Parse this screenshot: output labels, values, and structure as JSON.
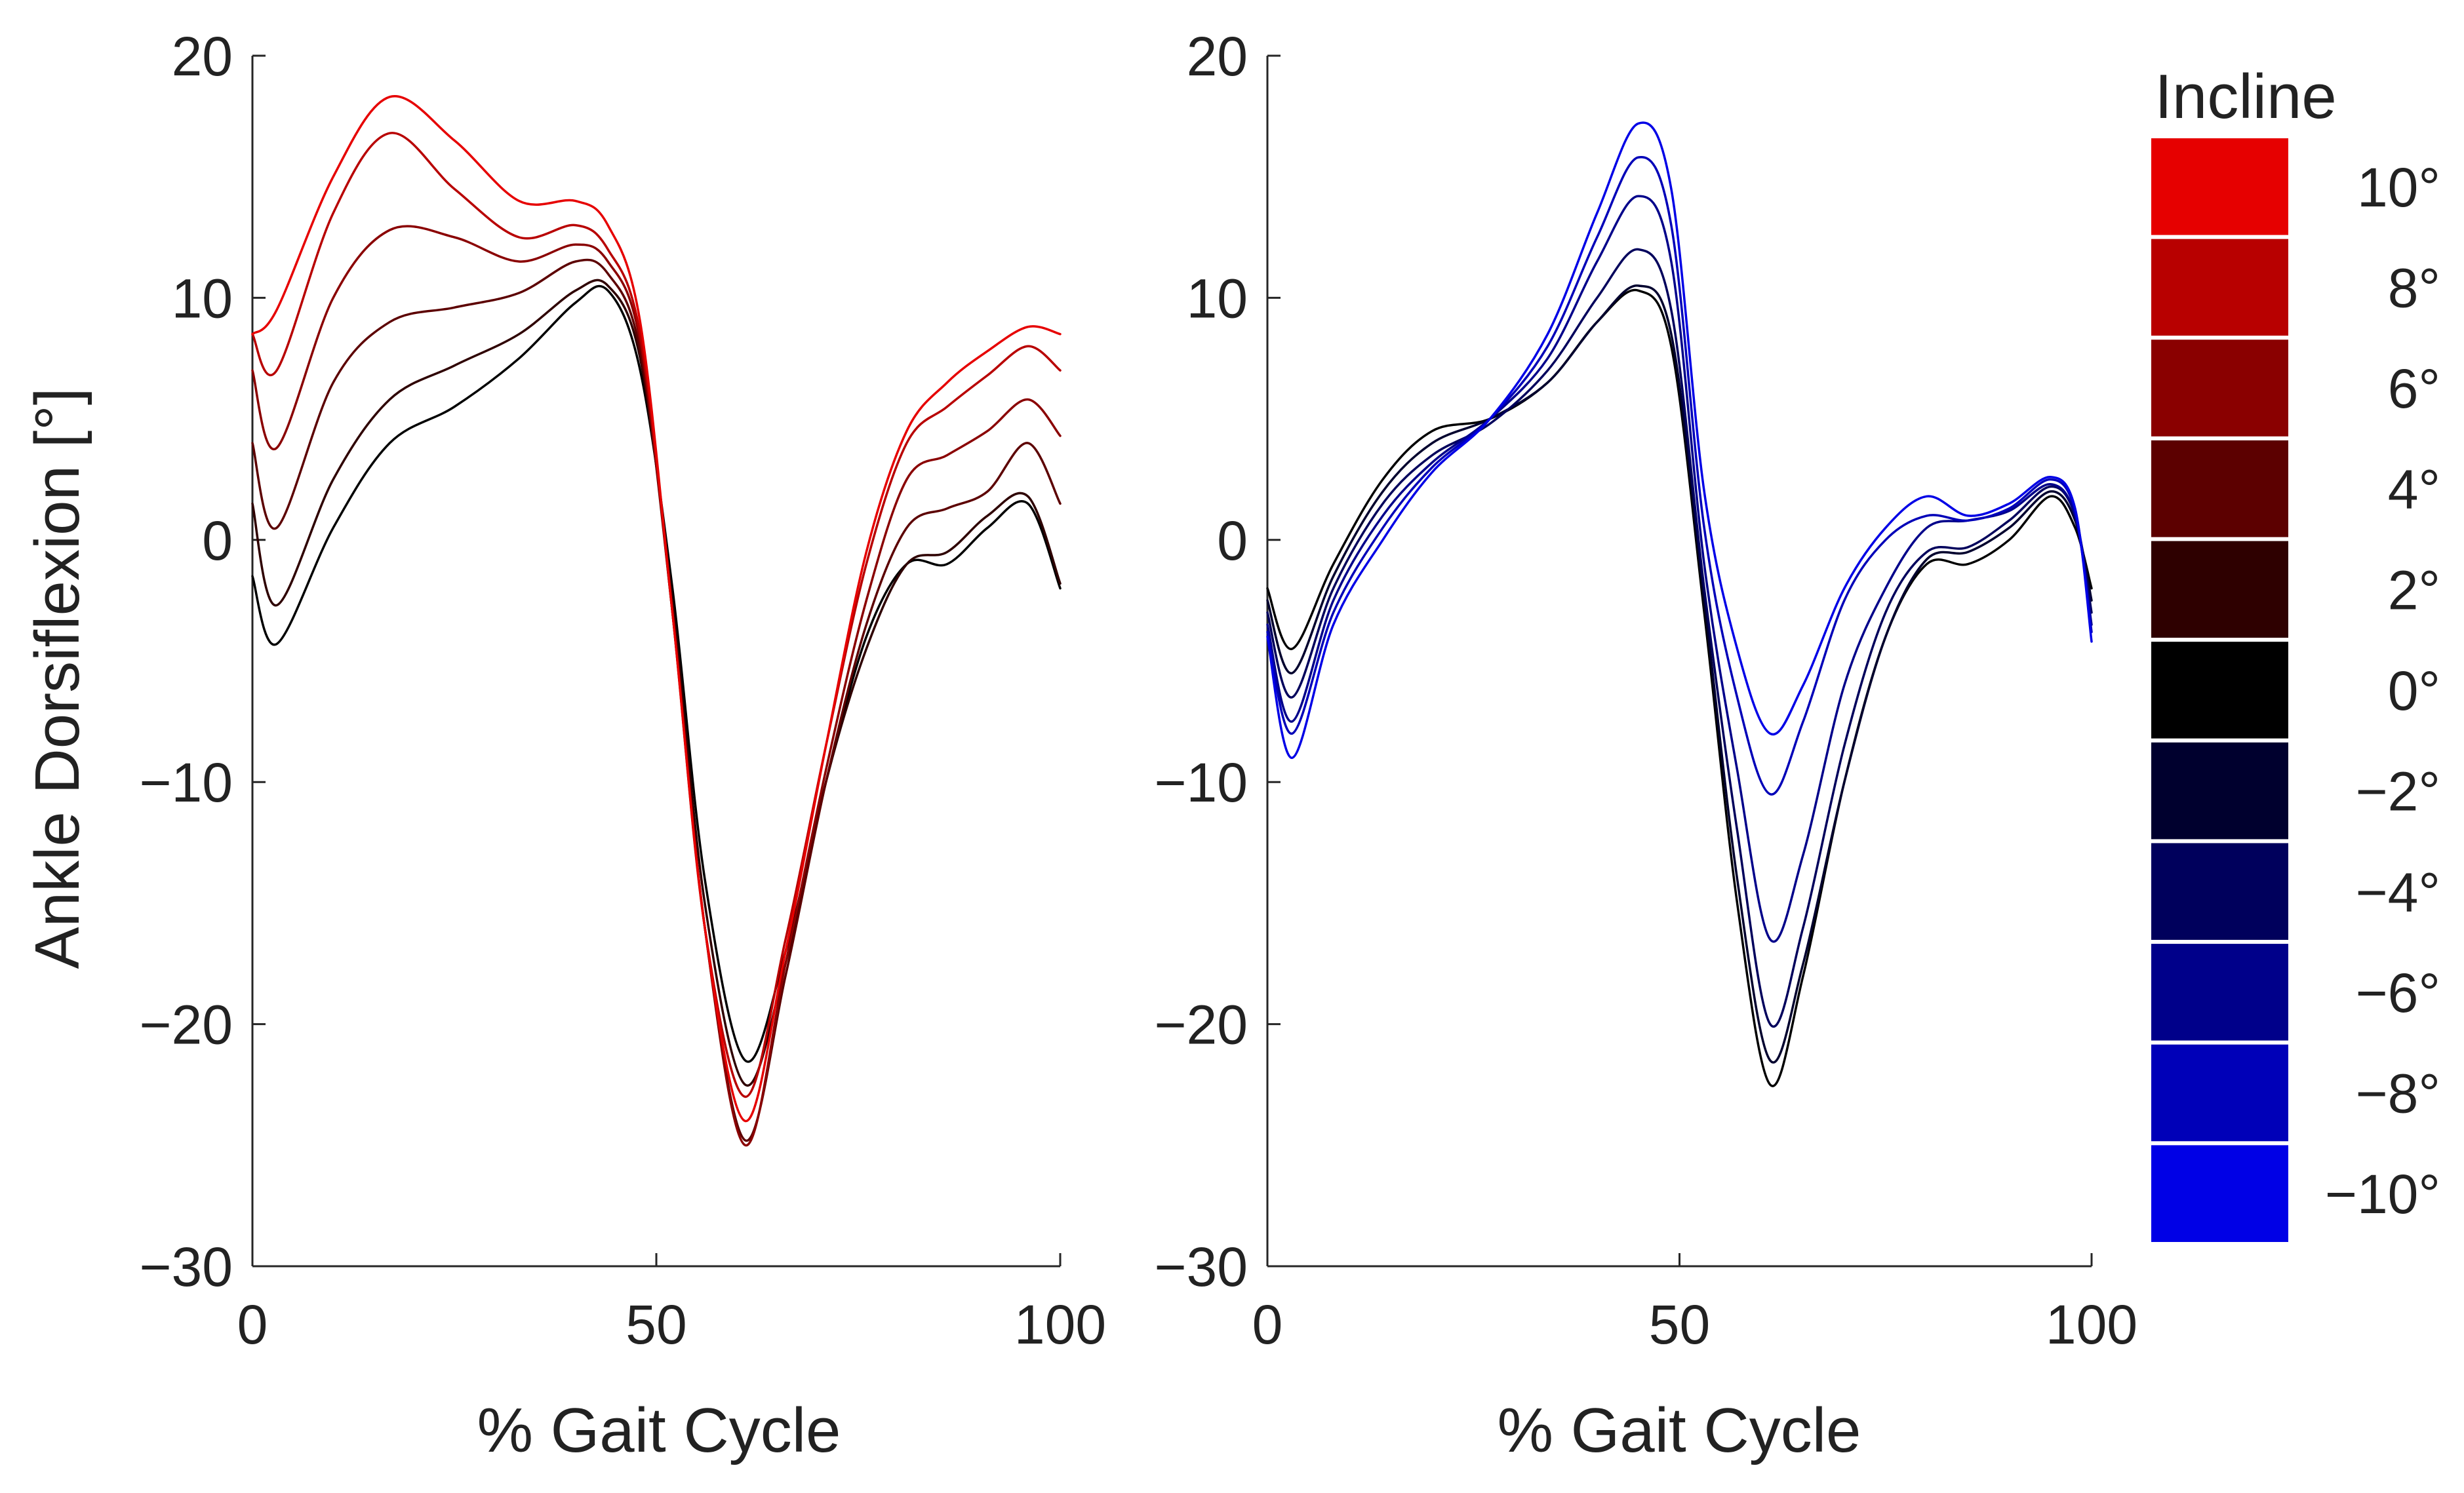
{
  "colorbar": {
    "title": "Incline",
    "ticks": [
      "10°",
      "8°",
      "6°",
      "4°",
      "2°",
      "0°",
      "−2°",
      "−4°",
      "−6°",
      "−8°",
      "−10°"
    ],
    "colors": [
      "#e60000",
      "#b80000",
      "#8a0000",
      "#5c0000",
      "#2e0000",
      "#000000",
      "#00002e",
      "#00005c",
      "#00008a",
      "#0000b8",
      "#0000e6"
    ]
  },
  "chart_data": [
    {
      "type": "line",
      "title": "",
      "xlabel": "% Gait Cycle",
      "ylabel": "Ankle Dorsiflexion [°]",
      "xlim": [
        0,
        100
      ],
      "ylim": [
        -30,
        20
      ],
      "xticks": [
        "0",
        "50",
        "100"
      ],
      "yticks": [
        "−30",
        "−20",
        "−10",
        "0",
        "10",
        "20"
      ],
      "x": [
        0,
        3,
        10,
        17,
        25,
        33,
        40,
        44,
        48,
        52,
        56,
        61,
        66,
        71,
        76,
        81,
        86,
        91,
        96,
        100
      ],
      "series": [
        {
          "name": "0°",
          "color": "#000000",
          "values": [
            -1.5,
            -4.3,
            0.5,
            4.0,
            5.5,
            7.5,
            9.8,
            10.3,
            7.0,
            -2.0,
            -14.0,
            -21.5,
            -17.0,
            -10.0,
            -4.0,
            -1.0,
            -1.0,
            0.5,
            1.5,
            -2.0
          ]
        },
        {
          "name": "2°",
          "color": "#2e0000",
          "values": [
            1.5,
            -2.7,
            2.5,
            5.8,
            7.2,
            8.5,
            10.3,
            10.5,
            7.5,
            -2.5,
            -15.0,
            -22.5,
            -17.5,
            -10.0,
            -4.5,
            -1.0,
            -0.5,
            1.0,
            1.8,
            -1.8
          ]
        },
        {
          "name": "4°",
          "color": "#5c0000",
          "values": [
            4.0,
            0.5,
            6.5,
            9.0,
            9.6,
            10.2,
            11.5,
            11.0,
            7.8,
            -3.0,
            -16.0,
            -24.8,
            -18.0,
            -10.0,
            -3.5,
            0.5,
            1.3,
            2.0,
            4.0,
            1.5
          ]
        },
        {
          "name": "6°",
          "color": "#8a0000",
          "values": [
            7.0,
            3.8,
            10.0,
            12.8,
            12.5,
            11.5,
            12.2,
            11.5,
            8.2,
            -3.0,
            -16.0,
            -25.0,
            -17.5,
            -9.5,
            -2.5,
            2.5,
            3.5,
            4.5,
            5.8,
            4.3
          ]
        },
        {
          "name": "8°",
          "color": "#b80000",
          "values": [
            8.5,
            7.0,
            13.5,
            16.8,
            14.5,
            12.5,
            13.0,
            12.0,
            8.5,
            -3.0,
            -16.0,
            -23.0,
            -16.5,
            -8.5,
            -1.0,
            4.0,
            5.5,
            6.8,
            8.0,
            7.0
          ]
        },
        {
          "name": "10°",
          "color": "#e60000",
          "values": [
            8.5,
            9.5,
            15.0,
            18.3,
            16.5,
            14.0,
            14.0,
            13.0,
            9.0,
            -3.0,
            -16.0,
            -24.0,
            -17.0,
            -8.5,
            -0.5,
            4.5,
            6.5,
            7.8,
            8.8,
            8.5
          ]
        }
      ]
    },
    {
      "type": "line",
      "title": "",
      "xlabel": "% Gait Cycle",
      "ylabel": "",
      "xlim": [
        0,
        100
      ],
      "ylim": [
        -30,
        20
      ],
      "xticks": [
        "0",
        "50",
        "100"
      ],
      "yticks": [
        "−30",
        "−20",
        "−10",
        "0",
        "10",
        "20"
      ],
      "x": [
        0,
        3,
        8,
        14,
        20,
        27,
        34,
        40,
        45,
        49,
        53,
        57,
        61,
        65,
        70,
        75,
        80,
        85,
        90,
        95,
        98,
        100
      ],
      "series": [
        {
          "name": "0°",
          "color": "#000000",
          "values": [
            -2.0,
            -4.5,
            -1.0,
            2.5,
            4.5,
            5.0,
            6.5,
            9.0,
            10.3,
            8.0,
            -3.0,
            -15.0,
            -22.5,
            -18.0,
            -10.0,
            -4.0,
            -1.0,
            -1.0,
            0.0,
            1.8,
            0.5,
            -2.0
          ]
        },
        {
          "name": "−2°",
          "color": "#00002e",
          "values": [
            -2.5,
            -5.5,
            -1.5,
            2.0,
            4.0,
            5.0,
            6.5,
            9.0,
            10.5,
            8.5,
            -2.5,
            -14.0,
            -21.5,
            -17.5,
            -10.0,
            -4.0,
            -0.8,
            -0.5,
            0.5,
            2.0,
            0.8,
            -2.5
          ]
        },
        {
          "name": "−4°",
          "color": "#00005c",
          "values": [
            -3.0,
            -6.5,
            -2.0,
            1.5,
            3.5,
            4.8,
            7.0,
            10.0,
            12.0,
            9.5,
            -2.0,
            -12.0,
            -20.0,
            -16.0,
            -8.5,
            -3.0,
            -0.5,
            -0.3,
            0.8,
            2.2,
            1.0,
            -3.0
          ]
        },
        {
          "name": "−6°",
          "color": "#00008a",
          "values": [
            -3.5,
            -7.5,
            -2.5,
            1.0,
            3.2,
            5.0,
            7.5,
            11.5,
            14.2,
            11.5,
            -1.0,
            -9.5,
            -16.5,
            -13.0,
            -6.0,
            -2.0,
            0.5,
            0.8,
            1.2,
            2.3,
            1.0,
            -3.5
          ]
        },
        {
          "name": "−8°",
          "color": "#0000b8",
          "values": [
            -3.8,
            -8.0,
            -3.0,
            0.5,
            3.0,
            5.0,
            8.0,
            12.5,
            15.8,
            13.0,
            0.5,
            -6.5,
            -10.5,
            -7.5,
            -2.5,
            0.0,
            1.0,
            0.8,
            1.3,
            2.5,
            1.2,
            -3.8
          ]
        },
        {
          "name": "−10°",
          "color": "#0000e6",
          "values": [
            -4.0,
            -9.0,
            -3.5,
            0.0,
            2.8,
            5.0,
            8.5,
            13.5,
            17.2,
            14.5,
            2.0,
            -4.5,
            -8.0,
            -6.0,
            -2.0,
            0.5,
            1.8,
            1.0,
            1.5,
            2.6,
            1.3,
            -4.2
          ]
        }
      ]
    }
  ]
}
